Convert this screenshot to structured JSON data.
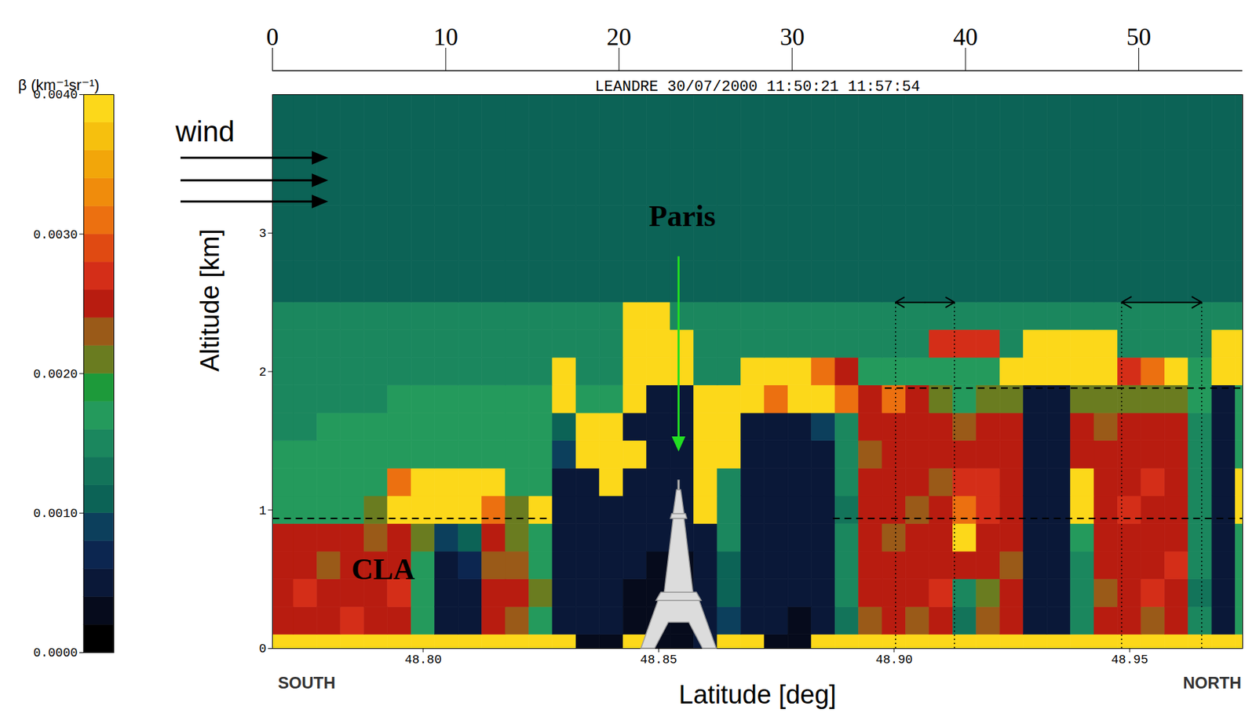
{
  "chart_data": {
    "type": "heatmap",
    "title": "LEANDRE 30/07/2000 11:50:21 11:57:54",
    "xlabel": "Latitude [deg]",
    "ylabel": "Altitude [km]",
    "xlim": [
      48.768,
      48.974
    ],
    "ylim": [
      0,
      4
    ],
    "xticks": [
      {
        "value": 48.8,
        "label": "48.80"
      },
      {
        "value": 48.85,
        "label": "48.85"
      },
      {
        "value": 48.9,
        "label": "48.90"
      },
      {
        "value": 48.95,
        "label": "48.95"
      }
    ],
    "yticks": [
      0,
      1,
      2,
      3
    ],
    "x2lim": [
      0,
      56
    ],
    "x2ticks": [
      0,
      10,
      20,
      30,
      40,
      50
    ],
    "direction_labels": {
      "left": "SOUTH",
      "right": "NORTH"
    },
    "wind_label": "wind",
    "annotations": [
      {
        "text": "Paris",
        "x": 48.855,
        "y": 3.12
      },
      {
        "text": "CLA",
        "x": 48.7915,
        "y": 0.57
      }
    ],
    "arrow": {
      "x": 48.8543,
      "y1": 2.83,
      "y2": 1.42
    },
    "boundary_layer_top": [
      {
        "y": 0.94,
        "x": [
          48.768,
          48.827
        ]
      },
      {
        "y": 0.94,
        "x": [
          48.887,
          48.977
        ]
      },
      {
        "y": 1.88,
        "x": [
          48.898,
          48.977
        ]
      }
    ],
    "averaging_windows": [
      {
        "x": [
          48.9003,
          48.9128
        ],
        "y": [
          0,
          2.5
        ]
      },
      {
        "x": [
          48.9483,
          48.9653
        ],
        "y": [
          0,
          2.5
        ]
      }
    ],
    "colorbar": {
      "label": "β (km⁻¹sr⁻¹)",
      "range": [
        0,
        0.004
      ],
      "ticks": [
        {
          "value": 0,
          "label": "0.0000"
        },
        {
          "value": 0.001,
          "label": "0.0010"
        },
        {
          "value": 0.002,
          "label": "0.0020"
        },
        {
          "value": 0.003,
          "label": "0.0030"
        },
        {
          "value": 0.004,
          "label": "0.0040"
        }
      ]
    },
    "x_edges": [
      48.7675,
      48.7725,
      48.7775,
      48.7825,
      48.7875,
      48.7925,
      48.7975,
      48.8025,
      48.8075,
      48.8125,
      48.8175,
      48.8225,
      48.8275,
      48.8325,
      48.8375,
      48.8425,
      48.8475,
      48.8525,
      48.8575,
      48.8625,
      48.8675,
      48.8725,
      48.8775,
      48.8825,
      48.8875,
      48.8925,
      48.8975,
      48.9025,
      48.9075,
      48.9125,
      48.9175,
      48.9225,
      48.9275,
      48.9325,
      48.9375,
      48.9425,
      48.9475,
      48.9525,
      48.9575,
      48.9625,
      48.9675,
      48.9725,
      48.9775
    ],
    "y_edges": [
      0,
      0.1,
      0.3,
      0.5,
      0.7,
      0.9,
      1.1,
      1.3,
      1.5,
      1.7,
      1.9,
      2.1,
      2.3,
      2.5,
      2.8,
      3.2,
      3.6,
      4.0
    ],
    "values": [
      [
        0.0039,
        0.0039,
        0.0039,
        0.0039,
        0.0039,
        0.0039,
        0.0039,
        0.0039,
        0.0039,
        0.0039,
        0.0039,
        0.0039,
        0.0039,
        0.0002,
        0.0002,
        0.0039,
        0.0002,
        0.0002,
        0.0004,
        0.0039,
        0.0039,
        0.0003,
        0.0003,
        0.0039,
        0.0039,
        0.0039,
        0.0039,
        0.0039,
        0.0039,
        0.0039,
        0.0039,
        0.0039,
        0.0039,
        0.0039,
        0.0039,
        0.0039,
        0.0039,
        0.0039,
        0.0039,
        0.0039,
        0.0039,
        0.0039
      ],
      [
        0.0026,
        0.0026,
        0.0026,
        0.0027,
        0.0026,
        0.0026,
        0.0018,
        0.0004,
        0.0006,
        0.0026,
        0.0022,
        0.0018,
        0.0004,
        0.0004,
        0.0004,
        0.0002,
        0.0002,
        0.0002,
        0.0004,
        0.0008,
        0.0004,
        0.0004,
        0.0002,
        0.0004,
        0.0013,
        0.0024,
        0.0026,
        0.0024,
        0.0026,
        0.0013,
        0.0022,
        0.0026,
        0.0006,
        0.0004,
        0.0014,
        0.0026,
        0.0026,
        0.0024,
        0.0026,
        0.0014,
        0.0004,
        0.0016
      ],
      [
        0.0026,
        0.0027,
        0.0026,
        0.0026,
        0.0026,
        0.0027,
        0.0018,
        0.0004,
        0.0004,
        0.0026,
        0.0026,
        0.002,
        0.0004,
        0.0004,
        0.0004,
        0.0002,
        0.0002,
        0.0002,
        0.0004,
        0.0012,
        0.0004,
        0.0004,
        0.0004,
        0.0004,
        0.0014,
        0.0026,
        0.0026,
        0.0026,
        0.0027,
        0.0014,
        0.002,
        0.0026,
        0.0004,
        0.0004,
        0.0015,
        0.0024,
        0.0026,
        0.0027,
        0.0026,
        0.0013,
        0.0004,
        0.0016
      ],
      [
        0.0026,
        0.0026,
        0.0024,
        0.0026,
        0.0026,
        0.0026,
        0.0018,
        0.0004,
        0.0007,
        0.0024,
        0.0022,
        0.0018,
        0.0004,
        0.0004,
        0.0004,
        0.0004,
        0.0002,
        0.0002,
        0.0004,
        0.0012,
        0.0004,
        0.0004,
        0.0004,
        0.0004,
        0.0014,
        0.0026,
        0.0026,
        0.0026,
        0.0026,
        0.0026,
        0.0026,
        0.0024,
        0.0004,
        0.0004,
        0.0014,
        0.0026,
        0.0026,
        0.0026,
        0.0027,
        0.0014,
        0.0004,
        0.0016
      ],
      [
        0.0026,
        0.0026,
        0.0026,
        0.0026,
        0.0024,
        0.0026,
        0.002,
        0.0008,
        0.0012,
        0.0026,
        0.002,
        0.0018,
        0.0004,
        0.0004,
        0.0004,
        0.0004,
        0.0004,
        0.0004,
        0.0005,
        0.0014,
        0.0004,
        0.0004,
        0.0004,
        0.0004,
        0.0014,
        0.0026,
        0.0024,
        0.0026,
        0.0026,
        0.0039,
        0.0026,
        0.0026,
        0.0004,
        0.0004,
        0.0016,
        0.0026,
        0.0026,
        0.0026,
        0.0026,
        0.0014,
        0.0004,
        0.0018
      ],
      [
        0.0018,
        0.0018,
        0.0018,
        0.0018,
        0.002,
        0.0039,
        0.0039,
        0.0039,
        0.0039,
        0.0031,
        0.002,
        0.0039,
        0.0005,
        0.0004,
        0.0004,
        0.0004,
        0.0004,
        0.0004,
        0.0039,
        0.0014,
        0.0004,
        0.0004,
        0.0004,
        0.0004,
        0.0013,
        0.0026,
        0.0026,
        0.0024,
        0.0026,
        0.0031,
        0.0027,
        0.0026,
        0.0004,
        0.0004,
        0.0039,
        0.0026,
        0.0027,
        0.0026,
        0.0026,
        0.0015,
        0.0004,
        0.0039
      ],
      [
        0.0016,
        0.0016,
        0.0016,
        0.0016,
        0.0016,
        0.003,
        0.0039,
        0.0039,
        0.0039,
        0.0039,
        0.0016,
        0.0016,
        0.0006,
        0.0005,
        0.0039,
        0.0004,
        0.0004,
        0.0004,
        0.0039,
        0.0015,
        0.0004,
        0.0004,
        0.0004,
        0.0004,
        0.0014,
        0.0026,
        0.0026,
        0.0026,
        0.0024,
        0.0027,
        0.0027,
        0.0026,
        0.0004,
        0.0004,
        0.0039,
        0.0026,
        0.0026,
        0.0027,
        0.0026,
        0.0014,
        0.0004,
        0.0039
      ],
      [
        0.0016,
        0.0016,
        0.0016,
        0.0016,
        0.0016,
        0.0016,
        0.0016,
        0.0018,
        0.0016,
        0.0016,
        0.0016,
        0.0016,
        0.0008,
        0.0039,
        0.0039,
        0.0039,
        0.0004,
        0.0004,
        0.0039,
        0.0039,
        0.0005,
        0.0004,
        0.0004,
        0.0004,
        0.0014,
        0.0024,
        0.0026,
        0.0026,
        0.0026,
        0.0026,
        0.0026,
        0.0026,
        0.0004,
        0.0004,
        0.0026,
        0.0026,
        0.0026,
        0.0026,
        0.0026,
        0.0014,
        0.0004,
        0.0016
      ],
      [
        0.0015,
        0.0015,
        0.0016,
        0.0016,
        0.0016,
        0.0016,
        0.0016,
        0.0016,
        0.0016,
        0.0016,
        0.0016,
        0.0016,
        0.0012,
        0.0039,
        0.0039,
        0.0006,
        0.0004,
        0.0004,
        0.0039,
        0.0039,
        0.0006,
        0.0006,
        0.0006,
        0.0008,
        0.0015,
        0.0026,
        0.0026,
        0.0026,
        0.0026,
        0.0024,
        0.0026,
        0.0026,
        0.0004,
        0.0004,
        0.0026,
        0.0024,
        0.0026,
        0.0026,
        0.0026,
        0.0014,
        0.0004,
        0.0016
      ],
      [
        0.0015,
        0.0015,
        0.0015,
        0.0015,
        0.0015,
        0.0016,
        0.0016,
        0.0016,
        0.0016,
        0.0016,
        0.0016,
        0.0016,
        0.0039,
        0.0016,
        0.0016,
        0.0039,
        0.0004,
        0.0006,
        0.0039,
        0.0039,
        0.0039,
        0.0031,
        0.0039,
        0.0039,
        0.0031,
        0.0026,
        0.0031,
        0.0026,
        0.002,
        0.0018,
        0.002,
        0.002,
        0.0006,
        0.0004,
        0.002,
        0.002,
        0.002,
        0.002,
        0.002,
        0.0016,
        0.0004,
        0.0018
      ],
      [
        0.0015,
        0.0015,
        0.0015,
        0.0015,
        0.0015,
        0.0015,
        0.0015,
        0.0015,
        0.0015,
        0.0015,
        0.0015,
        0.0015,
        0.0039,
        0.0015,
        0.0015,
        0.0039,
        0.0039,
        0.0039,
        0.0015,
        0.0015,
        0.0039,
        0.0039,
        0.0039,
        0.0031,
        0.0026,
        0.0016,
        0.0016,
        0.0016,
        0.0016,
        0.0016,
        0.0016,
        0.0039,
        0.0039,
        0.0039,
        0.0039,
        0.0039,
        0.0027,
        0.0031,
        0.0039,
        0.0016,
        0.0039,
        0.0039
      ],
      [
        0.0014,
        0.0014,
        0.0014,
        0.0014,
        0.0014,
        0.0014,
        0.0014,
        0.0014,
        0.0014,
        0.0014,
        0.0014,
        0.0014,
        0.0014,
        0.0014,
        0.0014,
        0.0039,
        0.0039,
        0.0039,
        0.0014,
        0.0014,
        0.0014,
        0.0014,
        0.0014,
        0.0014,
        0.0014,
        0.0014,
        0.0014,
        0.0014,
        0.0027,
        0.0027,
        0.0027,
        0.0014,
        0.0039,
        0.0039,
        0.0039,
        0.0039,
        0.0015,
        0.0014,
        0.0014,
        0.0014,
        0.0039,
        0.0039
      ],
      [
        0.0014,
        0.0014,
        0.0014,
        0.0014,
        0.0014,
        0.0014,
        0.0014,
        0.0014,
        0.0014,
        0.0014,
        0.0014,
        0.0014,
        0.0014,
        0.0014,
        0.0014,
        0.0039,
        0.0039,
        0.0014,
        0.0014,
        0.0014,
        0.0014,
        0.0014,
        0.0014,
        0.0014,
        0.0014,
        0.0014,
        0.0014,
        0.0014,
        0.0014,
        0.0014,
        0.0014,
        0.0014,
        0.0014,
        0.0014,
        0.0014,
        0.0014,
        0.0014,
        0.0014,
        0.0014,
        0.0014,
        0.0014,
        0.0014
      ],
      [
        0.0012,
        0.0012,
        0.0012,
        0.0012,
        0.0012,
        0.0012,
        0.0012,
        0.0012,
        0.0012,
        0.0012,
        0.0012,
        0.0012,
        0.0012,
        0.0012,
        0.0012,
        0.0012,
        0.0012,
        0.0012,
        0.0012,
        0.0012,
        0.0012,
        0.0012,
        0.0012,
        0.0012,
        0.0012,
        0.0012,
        0.0012,
        0.0012,
        0.0012,
        0.0012,
        0.0012,
        0.0012,
        0.0012,
        0.0012,
        0.0012,
        0.0012,
        0.0012,
        0.0012,
        0.0012,
        0.0012,
        0.0012,
        0.0012
      ],
      [
        0.0011,
        0.0011,
        0.0011,
        0.0011,
        0.0011,
        0.0011,
        0.0011,
        0.0011,
        0.0011,
        0.0011,
        0.0011,
        0.0011,
        0.0011,
        0.0011,
        0.0011,
        0.0011,
        0.0011,
        0.0011,
        0.0011,
        0.0011,
        0.0011,
        0.0011,
        0.0011,
        0.0011,
        0.0011,
        0.0011,
        0.0011,
        0.0011,
        0.0011,
        0.0011,
        0.0011,
        0.0011,
        0.0011,
        0.0011,
        0.0011,
        0.0011,
        0.0011,
        0.0011,
        0.0011,
        0.0011,
        0.0011,
        0.0011
      ],
      [
        0.001,
        0.001,
        0.001,
        0.001,
        0.001,
        0.001,
        0.001,
        0.001,
        0.001,
        0.001,
        0.001,
        0.001,
        0.001,
        0.001,
        0.001,
        0.001,
        0.001,
        0.001,
        0.001,
        0.001,
        0.001,
        0.001,
        0.001,
        0.001,
        0.001,
        0.001,
        0.001,
        0.001,
        0.001,
        0.001,
        0.001,
        0.001,
        0.001,
        0.001,
        0.001,
        0.001,
        0.001,
        0.001,
        0.001,
        0.001,
        0.001,
        0.001
      ],
      [
        0.0011,
        0.0011,
        0.0011,
        0.0011,
        0.0011,
        0.0011,
        0.0011,
        0.0011,
        0.0011,
        0.0011,
        0.0011,
        0.0011,
        0.0011,
        0.0011,
        0.0011,
        0.0011,
        0.0011,
        0.0011,
        0.0011,
        0.0011,
        0.0011,
        0.0011,
        0.0011,
        0.0011,
        0.0011,
        0.0011,
        0.0011,
        0.0011,
        0.0011,
        0.0011,
        0.0011,
        0.0011,
        0.0011,
        0.0011,
        0.0011,
        0.0011,
        0.0011,
        0.0011,
        0.0011,
        0.0011,
        0.0011,
        0.0011
      ]
    ]
  }
}
